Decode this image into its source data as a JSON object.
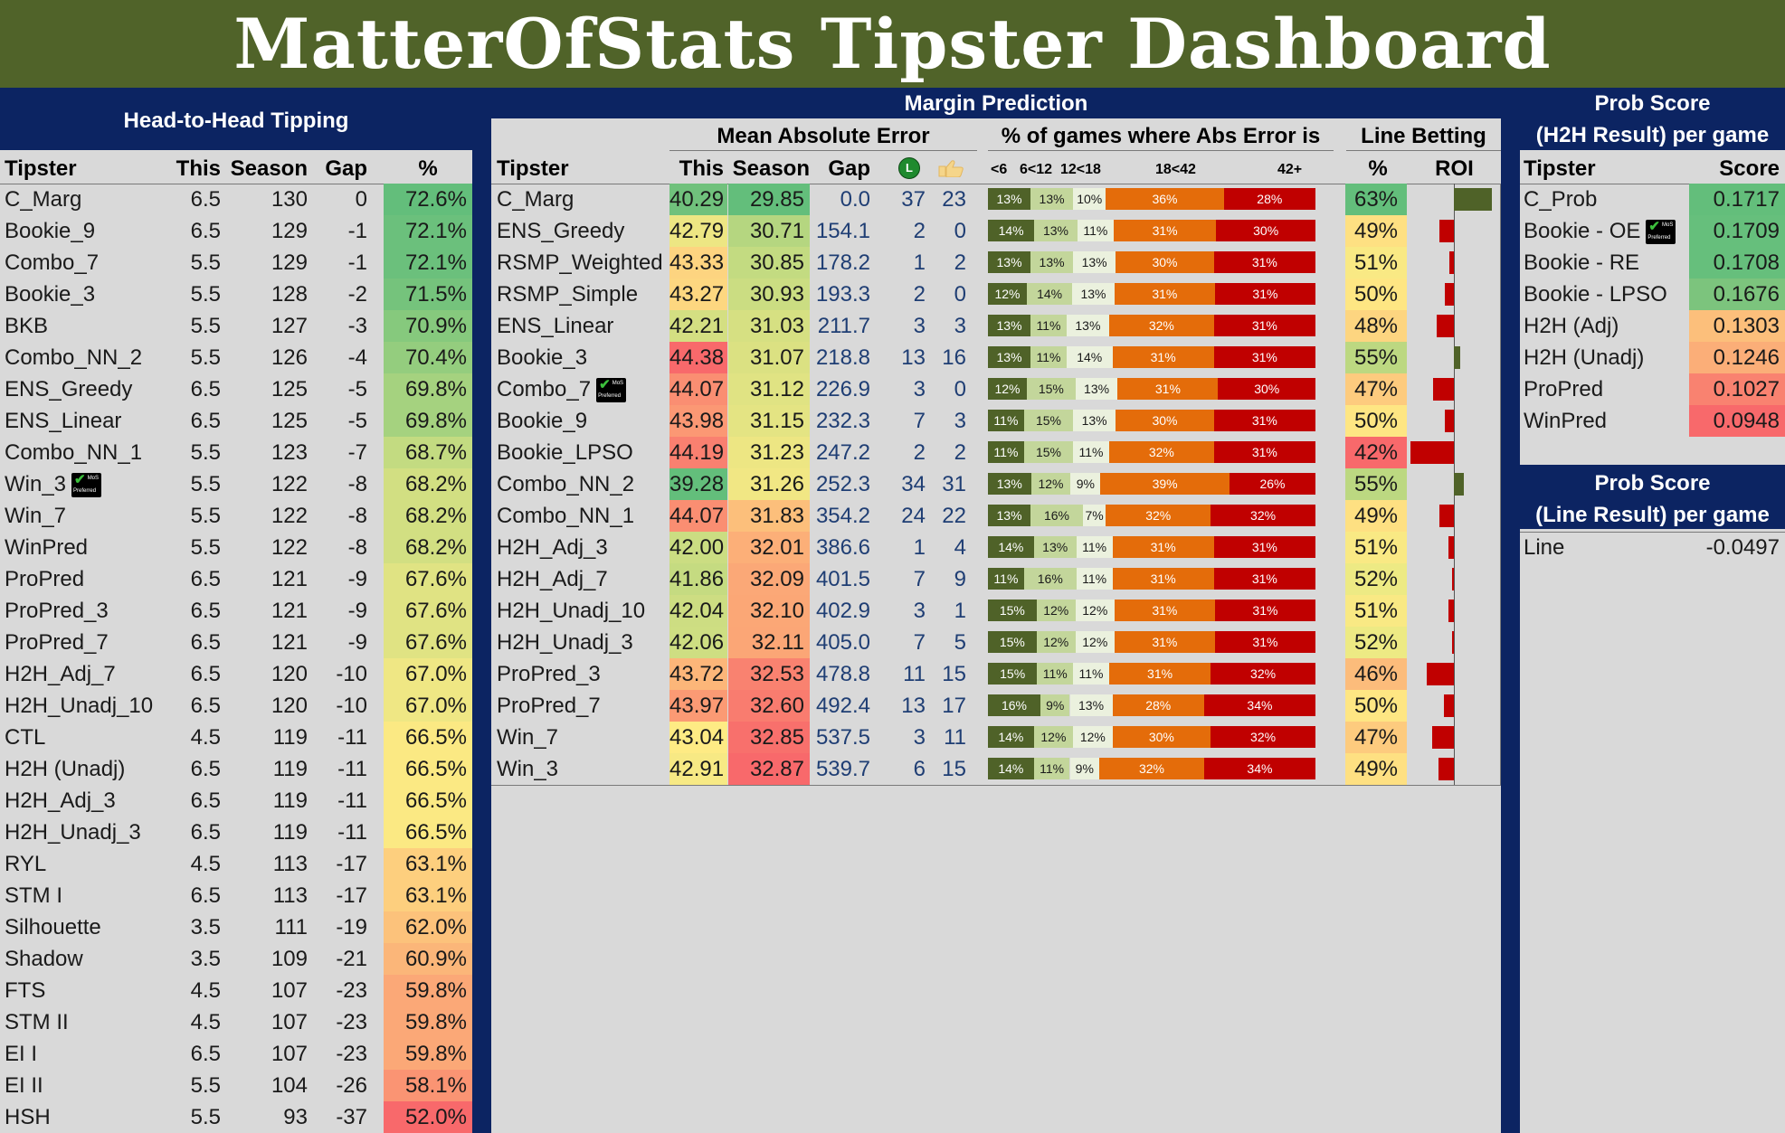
{
  "title": "MatterOfStats Tipster Dashboard",
  "h2h": {
    "title": "Head-to-Head Tipping",
    "headers": {
      "tipster": "Tipster",
      "this": "This",
      "season": "Season",
      "gap": "Gap",
      "pct": "%"
    },
    "rows": [
      {
        "name": "C_Marg",
        "this": "6.5",
        "season": "130",
        "gap": "0",
        "pct": "72.6%",
        "color": "#63be7b"
      },
      {
        "name": "Bookie_9",
        "this": "6.5",
        "season": "129",
        "gap": "-1",
        "pct": "72.1%",
        "color": "#6bc07c"
      },
      {
        "name": "Combo_7",
        "this": "5.5",
        "season": "129",
        "gap": "-1",
        "pct": "72.1%",
        "color": "#6bc07c"
      },
      {
        "name": "Bookie_3",
        "this": "5.5",
        "season": "128",
        "gap": "-2",
        "pct": "71.5%",
        "color": "#75c37c"
      },
      {
        "name": "BKB",
        "this": "5.5",
        "season": "127",
        "gap": "-3",
        "pct": "70.9%",
        "color": "#86c97d"
      },
      {
        "name": "Combo_NN_2",
        "this": "5.5",
        "season": "126",
        "gap": "-4",
        "pct": "70.4%",
        "color": "#94cd7e"
      },
      {
        "name": "ENS_Greedy",
        "this": "6.5",
        "season": "125",
        "gap": "-5",
        "pct": "69.8%",
        "color": "#a5d27f"
      },
      {
        "name": "ENS_Linear",
        "this": "6.5",
        "season": "125",
        "gap": "-5",
        "pct": "69.8%",
        "color": "#a5d27f"
      },
      {
        "name": "Combo_NN_1",
        "this": "5.5",
        "season": "123",
        "gap": "-7",
        "pct": "68.7%",
        "color": "#c3db81"
      },
      {
        "name": "Win_3",
        "this": "5.5",
        "season": "122",
        "gap": "-8",
        "pct": "68.2%",
        "color": "#d2df82",
        "badge": true
      },
      {
        "name": "Win_7",
        "this": "5.5",
        "season": "122",
        "gap": "-8",
        "pct": "68.2%",
        "color": "#d2df82"
      },
      {
        "name": "WinPred",
        "this": "5.5",
        "season": "122",
        "gap": "-8",
        "pct": "68.2%",
        "color": "#d2df82"
      },
      {
        "name": "ProPred",
        "this": "6.5",
        "season": "121",
        "gap": "-9",
        "pct": "67.6%",
        "color": "#e0e383"
      },
      {
        "name": "ProPred_3",
        "this": "6.5",
        "season": "121",
        "gap": "-9",
        "pct": "67.6%",
        "color": "#e0e383"
      },
      {
        "name": "ProPred_7",
        "this": "6.5",
        "season": "121",
        "gap": "-9",
        "pct": "67.6%",
        "color": "#e0e383"
      },
      {
        "name": "H2H_Adj_7",
        "this": "6.5",
        "season": "120",
        "gap": "-10",
        "pct": "67.0%",
        "color": "#efe784"
      },
      {
        "name": "H2H_Unadj_10",
        "this": "6.5",
        "season": "120",
        "gap": "-10",
        "pct": "67.0%",
        "color": "#efe784"
      },
      {
        "name": "CTL",
        "this": "4.5",
        "season": "119",
        "gap": "-11",
        "pct": "66.5%",
        "color": "#fbe983"
      },
      {
        "name": "H2H (Unadj)",
        "this": "6.5",
        "season": "119",
        "gap": "-11",
        "pct": "66.5%",
        "color": "#fbe983"
      },
      {
        "name": "H2H_Adj_3",
        "this": "6.5",
        "season": "119",
        "gap": "-11",
        "pct": "66.5%",
        "color": "#fbe983"
      },
      {
        "name": "H2H_Unadj_3",
        "this": "6.5",
        "season": "119",
        "gap": "-11",
        "pct": "66.5%",
        "color": "#fbe983"
      },
      {
        "name": "RYL",
        "this": "4.5",
        "season": "113",
        "gap": "-17",
        "pct": "63.1%",
        "color": "#fdcf7e"
      },
      {
        "name": "STM I",
        "this": "6.5",
        "season": "113",
        "gap": "-17",
        "pct": "63.1%",
        "color": "#fdcf7e"
      },
      {
        "name": "Silhouette",
        "this": "3.5",
        "season": "111",
        "gap": "-19",
        "pct": "62.0%",
        "color": "#fcc27b"
      },
      {
        "name": "Shadow",
        "this": "3.5",
        "season": "109",
        "gap": "-21",
        "pct": "60.9%",
        "color": "#fbb679"
      },
      {
        "name": "FTS",
        "this": "4.5",
        "season": "107",
        "gap": "-23",
        "pct": "59.8%",
        "color": "#fba877"
      },
      {
        "name": "STM II",
        "this": "4.5",
        "season": "107",
        "gap": "-23",
        "pct": "59.8%",
        "color": "#fba877"
      },
      {
        "name": "EI I",
        "this": "6.5",
        "season": "107",
        "gap": "-23",
        "pct": "59.8%",
        "color": "#fba877"
      },
      {
        "name": "EI II",
        "this": "5.5",
        "season": "104",
        "gap": "-26",
        "pct": "58.1%",
        "color": "#fa9473"
      },
      {
        "name": "HSH",
        "this": "5.5",
        "season": "93",
        "gap": "-37",
        "pct": "52.0%",
        "color": "#f8696b"
      }
    ]
  },
  "margin": {
    "title": "Margin Prediction",
    "mae_title": "Mean Absolute Error",
    "abs_title": "% of games where Abs Error is",
    "line_title": "Line Betting",
    "headers": {
      "tipster": "Tipster",
      "this": "This",
      "season": "Season",
      "gap": "Gap",
      "pct": "%",
      "roi": "ROI"
    },
    "bucket_labels": [
      "<6",
      "6<12",
      "12<18",
      "18<42",
      "42+"
    ],
    "bucket_colors": [
      "#4f6228",
      "#c3d69b",
      "#ebf1de",
      "#e46c0a",
      "#c00000"
    ],
    "bucket_text_colors": [
      "#ffffff",
      "#1a1a1a",
      "#1a1a1a",
      "#ffffff",
      "#ffffff"
    ],
    "icons": {
      "first": "green-circle-icon",
      "second": "thumbs-up-icon"
    },
    "rows": [
      {
        "name": "C_Marg",
        "this": "40.29",
        "season": "29.85",
        "gap": "0.0",
        "c1": "37",
        "c2": "23",
        "this_color": "#70c17c",
        "season_color": "#63be7b",
        "buckets": [
          "13%",
          "13%",
          "10%",
          "36%",
          "28%"
        ],
        "pct": "63%",
        "pct_color": "#63be7b",
        "roi": 0.35
      },
      {
        "name": "ENS_Greedy",
        "this": "42.79",
        "season": "30.71",
        "gap": "154.1",
        "c1": "2",
        "c2": "0",
        "this_color": "#ede683",
        "season_color": "#b5d680",
        "buckets": [
          "14%",
          "13%",
          "11%",
          "31%",
          "30%"
        ],
        "pct": "49%",
        "pct_color": "#fee082",
        "roi": -0.13
      },
      {
        "name": "RSMP_Weighted",
        "this": "43.33",
        "season": "30.85",
        "gap": "178.2",
        "c1": "1",
        "c2": "2",
        "this_color": "#fdd480",
        "season_color": "#c3db81",
        "buckets": [
          "13%",
          "13%",
          "13%",
          "30%",
          "31%"
        ],
        "pct": "51%",
        "pct_color": "#f9e984",
        "roi": -0.04
      },
      {
        "name": "RSMP_Simple",
        "this": "43.27",
        "season": "30.93",
        "gap": "193.3",
        "c1": "2",
        "c2": "0",
        "this_color": "#fdd780",
        "season_color": "#cbdd82",
        "buckets": [
          "12%",
          "14%",
          "13%",
          "31%",
          "31%"
        ],
        "pct": "50%",
        "pct_color": "#fee683",
        "roi": -0.08
      },
      {
        "name": "ENS_Linear",
        "this": "42.21",
        "season": "31.03",
        "gap": "211.7",
        "c1": "3",
        "c2": "3",
        "this_color": "#d4df82",
        "season_color": "#d6e082",
        "buckets": [
          "13%",
          "11%",
          "13%",
          "32%",
          "31%"
        ],
        "pct": "48%",
        "pct_color": "#fdd580",
        "roi": -0.16
      },
      {
        "name": "Bookie_3",
        "this": "44.38",
        "season": "31.07",
        "gap": "218.8",
        "c1": "13",
        "c2": "16",
        "this_color": "#f8696b",
        "season_color": "#dbe182",
        "buckets": [
          "13%",
          "11%",
          "14%",
          "31%",
          "31%"
        ],
        "pct": "55%",
        "pct_color": "#bcd881",
        "roi": 0.06
      },
      {
        "name": "Combo_7",
        "this": "44.07",
        "season": "31.12",
        "gap": "226.9",
        "c1": "3",
        "c2": "0",
        "this_color": "#fa8e72",
        "season_color": "#e0e383",
        "buckets": [
          "12%",
          "15%",
          "13%",
          "31%",
          "30%"
        ],
        "pct": "47%",
        "pct_color": "#fdcb7e",
        "roi": -0.19,
        "badge": true
      },
      {
        "name": "Bookie_9",
        "this": "43.98",
        "season": "31.15",
        "gap": "232.3",
        "c1": "7",
        "c2": "3",
        "this_color": "#fb9874",
        "season_color": "#e4e483",
        "buckets": [
          "11%",
          "15%",
          "13%",
          "30%",
          "31%"
        ],
        "pct": "50%",
        "pct_color": "#fee683",
        "roi": -0.08
      },
      {
        "name": "Bookie_LPSO",
        "this": "44.19",
        "season": "31.23",
        "gap": "247.2",
        "c1": "2",
        "c2": "2",
        "this_color": "#f98070",
        "season_color": "#ede683",
        "buckets": [
          "11%",
          "15%",
          "11%",
          "32%",
          "31%"
        ],
        "pct": "42%",
        "pct_color": "#f8696b",
        "roi": -0.4
      },
      {
        "name": "Combo_NN_2",
        "this": "39.28",
        "season": "31.26",
        "gap": "252.3",
        "c1": "34",
        "c2": "31",
        "this_color": "#63be7b",
        "season_color": "#f1e784",
        "buckets": [
          "13%",
          "12%",
          "9%",
          "39%",
          "26%"
        ],
        "pct": "55%",
        "pct_color": "#bcd881",
        "roi": 0.09
      },
      {
        "name": "Combo_NN_1",
        "this": "44.07",
        "season": "31.83",
        "gap": "354.2",
        "c1": "24",
        "c2": "22",
        "this_color": "#fa8e72",
        "season_color": "#fcbf7b",
        "buckets": [
          "13%",
          "16%",
          "7%",
          "32%",
          "32%"
        ],
        "pct": "49%",
        "pct_color": "#fee082",
        "roi": -0.13
      },
      {
        "name": "H2H_Adj_3",
        "this": "42.00",
        "season": "32.01",
        "gap": "386.6",
        "c1": "1",
        "c2": "4",
        "this_color": "#cbdd82",
        "season_color": "#fcaf78",
        "buckets": [
          "14%",
          "13%",
          "11%",
          "31%",
          "31%"
        ],
        "pct": "51%",
        "pct_color": "#f9e984",
        "roi": -0.05
      },
      {
        "name": "H2H_Adj_7",
        "this": "41.86",
        "season": "32.09",
        "gap": "401.5",
        "c1": "7",
        "c2": "9",
        "this_color": "#c5db81",
        "season_color": "#fba877",
        "buckets": [
          "11%",
          "16%",
          "11%",
          "31%",
          "31%"
        ],
        "pct": "52%",
        "pct_color": "#edea84",
        "roi": -0.02
      },
      {
        "name": "H2H_Unadj_10",
        "this": "42.04",
        "season": "32.10",
        "gap": "402.9",
        "c1": "3",
        "c2": "1",
        "this_color": "#cddd82",
        "season_color": "#fba776",
        "buckets": [
          "15%",
          "12%",
          "12%",
          "31%",
          "31%"
        ],
        "pct": "51%",
        "pct_color": "#f9e984",
        "roi": -0.05
      },
      {
        "name": "H2H_Unadj_3",
        "this": "42.06",
        "season": "32.11",
        "gap": "405.0",
        "c1": "7",
        "c2": "5",
        "this_color": "#cede82",
        "season_color": "#fba676",
        "buckets": [
          "15%",
          "12%",
          "12%",
          "31%",
          "31%"
        ],
        "pct": "52%",
        "pct_color": "#edea84",
        "roi": -0.02
      },
      {
        "name": "ProPred_3",
        "this": "43.72",
        "season": "32.53",
        "gap": "478.8",
        "c1": "11",
        "c2": "15",
        "this_color": "#fcb679",
        "season_color": "#f98270",
        "buckets": [
          "15%",
          "11%",
          "11%",
          "31%",
          "32%"
        ],
        "pct": "46%",
        "pct_color": "#fcbc7b",
        "roi": -0.25
      },
      {
        "name": "ProPred_7",
        "this": "43.97",
        "season": "32.60",
        "gap": "492.4",
        "c1": "13",
        "c2": "17",
        "this_color": "#fb9a74",
        "season_color": "#f97c6f",
        "buckets": [
          "16%",
          "9%",
          "13%",
          "28%",
          "34%"
        ],
        "pct": "50%",
        "pct_color": "#fee683",
        "roi": -0.09
      },
      {
        "name": "Win_7",
        "this": "43.04",
        "season": "32.85",
        "gap": "537.5",
        "c1": "3",
        "c2": "11",
        "this_color": "#feeb84",
        "season_color": "#f8706c",
        "buckets": [
          "14%",
          "12%",
          "12%",
          "30%",
          "32%"
        ],
        "pct": "47%",
        "pct_color": "#fdcb7e",
        "roi": -0.2
      },
      {
        "name": "Win_3",
        "this": "42.91",
        "season": "32.87",
        "gap": "539.7",
        "c1": "6",
        "c2": "15",
        "this_color": "#f7e984",
        "season_color": "#f8696b",
        "buckets": [
          "14%",
          "11%",
          "9%",
          "32%",
          "34%"
        ],
        "pct": "49%",
        "pct_color": "#fee082",
        "roi": -0.14
      }
    ]
  },
  "prob_h2h": {
    "title_line1": "Prob Score",
    "title_line2": "(H2H Result) per game",
    "headers": {
      "tipster": "Tipster",
      "score": "Score"
    },
    "rows": [
      {
        "name": "C_Prob",
        "score": "0.1717",
        "color": "#63be7b"
      },
      {
        "name": "Bookie - OE",
        "score": "0.1709",
        "color": "#66bf7c",
        "badge": true
      },
      {
        "name": "Bookie - RE",
        "score": "0.1708",
        "color": "#66bf7c"
      },
      {
        "name": "Bookie - LPSO",
        "score": "0.1676",
        "color": "#7cc47d"
      },
      {
        "name": "H2H (Adj)",
        "score": "0.1303",
        "color": "#fcbf7b"
      },
      {
        "name": "H2H (Unadj)",
        "score": "0.1246",
        "color": "#fbae78"
      },
      {
        "name": "ProPred",
        "score": "0.1027",
        "color": "#f98270"
      },
      {
        "name": "WinPred",
        "score": "0.0948",
        "color": "#f8696b"
      }
    ]
  },
  "prob_line": {
    "title_line1": "Prob Score",
    "title_line2": "(Line Result) per game",
    "rows": [
      {
        "name": "Line",
        "score": "-0.0497"
      }
    ]
  }
}
